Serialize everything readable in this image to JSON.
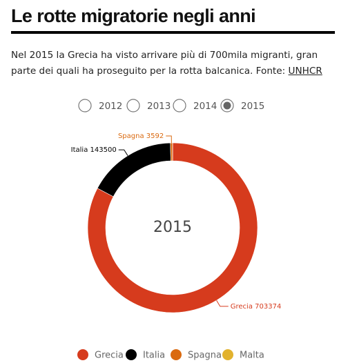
{
  "chart_data": {
    "type": "donut",
    "title": "Le rotte migratorie negli anni",
    "description": "Nel 2015 la Grecia ha visto arrivare più di 700mila migranti, gran parte dei quali ha proseguito per la rotta balcanica. Fonte:",
    "source_link": "UNHCR",
    "options": [
      "2012",
      "2013",
      "2014",
      "2015"
    ],
    "selected_option": 3,
    "center_label": "2015",
    "categories": [
      "Grecia",
      "Italia",
      "Spagna",
      "Malta"
    ],
    "values": [
      703374,
      143500,
      3592,
      0
    ],
    "colors": [
      "#d63b1d",
      "#000000",
      "#da6a10",
      "#e2b22e"
    ]
  }
}
